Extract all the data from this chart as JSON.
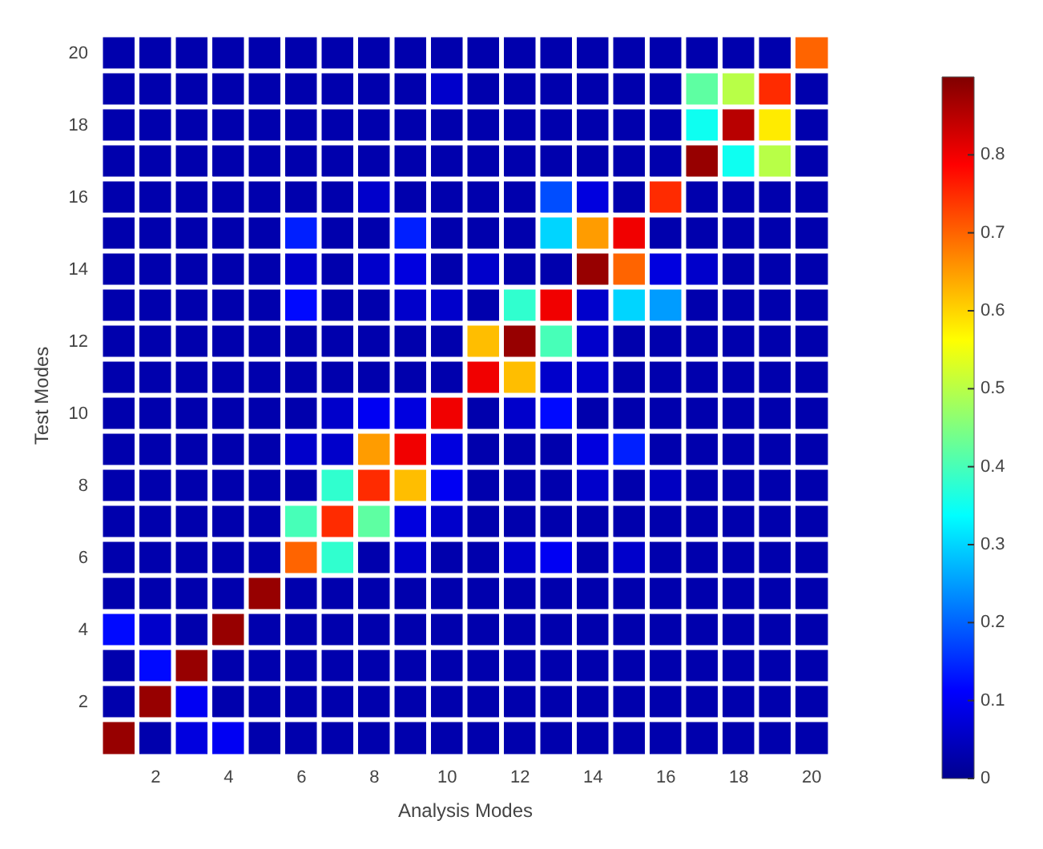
{
  "chart_data": {
    "type": "heatmap",
    "xlabel": "Analysis Modes",
    "ylabel": "Test Modes",
    "categories": [
      null,
      "2",
      null,
      "4",
      null,
      "6",
      null,
      "8",
      null,
      "10",
      null,
      "12",
      null,
      "14",
      null,
      "16",
      null,
      "18",
      null,
      "20"
    ],
    "y_categories": [
      "20",
      null,
      "18",
      null,
      "16",
      null,
      "14",
      null,
      "12",
      null,
      "10",
      null,
      "8",
      null,
      "6",
      null,
      "4",
      null,
      "2",
      null
    ],
    "cells": [
      [
        0.03,
        0.03,
        0.03,
        0.03,
        0.03,
        0.03,
        0.03,
        0.03,
        0.03,
        0.03,
        0.03,
        0.03,
        0.03,
        0.03,
        0.03,
        0.03,
        0.03,
        0.03,
        0.03,
        0.7
      ],
      [
        0.03,
        0.03,
        0.03,
        0.03,
        0.03,
        0.03,
        0.03,
        0.03,
        0.03,
        0.06,
        0.03,
        0.03,
        0.03,
        0.03,
        0.03,
        0.03,
        0.42,
        0.5,
        0.75,
        0.03
      ],
      [
        0.03,
        0.03,
        0.03,
        0.03,
        0.03,
        0.03,
        0.03,
        0.03,
        0.03,
        0.03,
        0.03,
        0.03,
        0.03,
        0.03,
        0.03,
        0.03,
        0.35,
        0.85,
        0.58,
        0.03
      ],
      [
        0.03,
        0.03,
        0.03,
        0.03,
        0.03,
        0.03,
        0.03,
        0.03,
        0.03,
        0.03,
        0.03,
        0.03,
        0.03,
        0.03,
        0.03,
        0.03,
        0.88,
        0.35,
        0.5,
        0.03
      ],
      [
        0.03,
        0.03,
        0.03,
        0.03,
        0.03,
        0.03,
        0.03,
        0.06,
        0.03,
        0.03,
        0.03,
        0.03,
        0.18,
        0.08,
        0.03,
        0.75,
        0.03,
        0.03,
        0.03,
        0.03
      ],
      [
        0.03,
        0.03,
        0.03,
        0.03,
        0.03,
        0.14,
        0.03,
        0.03,
        0.14,
        0.03,
        0.03,
        0.03,
        0.3,
        0.65,
        0.8,
        0.03,
        0.03,
        0.03,
        0.03,
        0.03
      ],
      [
        0.03,
        0.03,
        0.03,
        0.03,
        0.03,
        0.06,
        0.03,
        0.06,
        0.08,
        0.03,
        0.06,
        0.03,
        0.03,
        0.88,
        0.7,
        0.08,
        0.06,
        0.03,
        0.03,
        0.03
      ],
      [
        0.03,
        0.03,
        0.03,
        0.03,
        0.03,
        0.12,
        0.03,
        0.03,
        0.06,
        0.06,
        0.03,
        0.38,
        0.8,
        0.06,
        0.3,
        0.25,
        0.03,
        0.03,
        0.03,
        0.03
      ],
      [
        0.03,
        0.03,
        0.03,
        0.03,
        0.03,
        0.03,
        0.03,
        0.03,
        0.03,
        0.03,
        0.62,
        0.88,
        0.4,
        0.06,
        0.03,
        0.03,
        0.03,
        0.03,
        0.03,
        0.03
      ],
      [
        0.03,
        0.03,
        0.03,
        0.03,
        0.03,
        0.03,
        0.03,
        0.03,
        0.03,
        0.03,
        0.8,
        0.62,
        0.06,
        0.06,
        0.03,
        0.03,
        0.03,
        0.03,
        0.03,
        0.03
      ],
      [
        0.03,
        0.03,
        0.03,
        0.03,
        0.03,
        0.03,
        0.06,
        0.1,
        0.08,
        0.8,
        0.03,
        0.06,
        0.12,
        0.03,
        0.03,
        0.03,
        0.03,
        0.03,
        0.03,
        0.03
      ],
      [
        0.03,
        0.03,
        0.03,
        0.03,
        0.03,
        0.06,
        0.06,
        0.65,
        0.8,
        0.08,
        0.03,
        0.03,
        0.03,
        0.08,
        0.14,
        0.03,
        0.03,
        0.03,
        0.03,
        0.03
      ],
      [
        0.03,
        0.03,
        0.03,
        0.03,
        0.03,
        0.03,
        0.38,
        0.75,
        0.62,
        0.1,
        0.03,
        0.03,
        0.03,
        0.06,
        0.03,
        0.05,
        0.03,
        0.03,
        0.03,
        0.03
      ],
      [
        0.03,
        0.03,
        0.03,
        0.03,
        0.03,
        0.4,
        0.75,
        0.42,
        0.08,
        0.06,
        0.03,
        0.03,
        0.03,
        0.03,
        0.03,
        0.03,
        0.03,
        0.03,
        0.03,
        0.03
      ],
      [
        0.03,
        0.03,
        0.03,
        0.03,
        0.03,
        0.7,
        0.38,
        0.03,
        0.06,
        0.03,
        0.03,
        0.06,
        0.1,
        0.03,
        0.06,
        0.03,
        0.03,
        0.03,
        0.03,
        0.03
      ],
      [
        0.03,
        0.03,
        0.03,
        0.03,
        0.88,
        0.03,
        0.03,
        0.03,
        0.03,
        0.03,
        0.03,
        0.03,
        0.03,
        0.03,
        0.03,
        0.03,
        0.03,
        0.03,
        0.03,
        0.03
      ],
      [
        0.12,
        0.06,
        0.03,
        0.88,
        0.03,
        0.03,
        0.03,
        0.03,
        0.03,
        0.03,
        0.03,
        0.03,
        0.03,
        0.03,
        0.03,
        0.03,
        0.03,
        0.03,
        0.03,
        0.03
      ],
      [
        0.03,
        0.12,
        0.88,
        0.03,
        0.03,
        0.03,
        0.03,
        0.03,
        0.03,
        0.03,
        0.03,
        0.03,
        0.03,
        0.03,
        0.03,
        0.03,
        0.03,
        0.03,
        0.03,
        0.03
      ],
      [
        0.03,
        0.88,
        0.1,
        0.03,
        0.03,
        0.03,
        0.03,
        0.03,
        0.03,
        0.03,
        0.03,
        0.03,
        0.03,
        0.03,
        0.03,
        0.03,
        0.03,
        0.03,
        0.03,
        0.03
      ],
      [
        0.88,
        0.03,
        0.08,
        0.1,
        0.03,
        0.03,
        0.03,
        0.03,
        0.03,
        0.03,
        0.03,
        0.03,
        0.03,
        0.03,
        0.03,
        0.03,
        0.03,
        0.03,
        0.03,
        0.03
      ]
    ],
    "clim": [
      0,
      0.9
    ],
    "cticks": [
      0,
      0.1,
      0.2,
      0.3,
      0.4,
      0.5,
      0.6,
      0.7,
      0.8
    ]
  }
}
